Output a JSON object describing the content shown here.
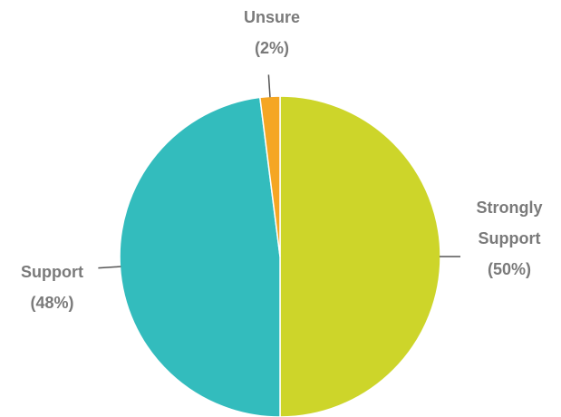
{
  "chart_data": {
    "type": "pie",
    "slices": [
      {
        "label": "Strongly Support",
        "value": 50,
        "color": "#cdd52a"
      },
      {
        "label": "Support",
        "value": 48,
        "color": "#33bcbd"
      },
      {
        "label": "Unsure",
        "value": 2,
        "color": "#f5a623"
      }
    ],
    "labels": {
      "strongly_support": {
        "line1": "Strongly",
        "line2": "Support",
        "pct": "(50%)"
      },
      "support": {
        "line1": "Support",
        "pct": "(48%)"
      },
      "unsure": {
        "line1": "Unsure",
        "pct": "(2%)"
      }
    },
    "start": "top",
    "direction": "clockwise",
    "label_color": "#7a7a7a",
    "leader_color": "#555555",
    "slice_border_color": "#ffffff"
  }
}
